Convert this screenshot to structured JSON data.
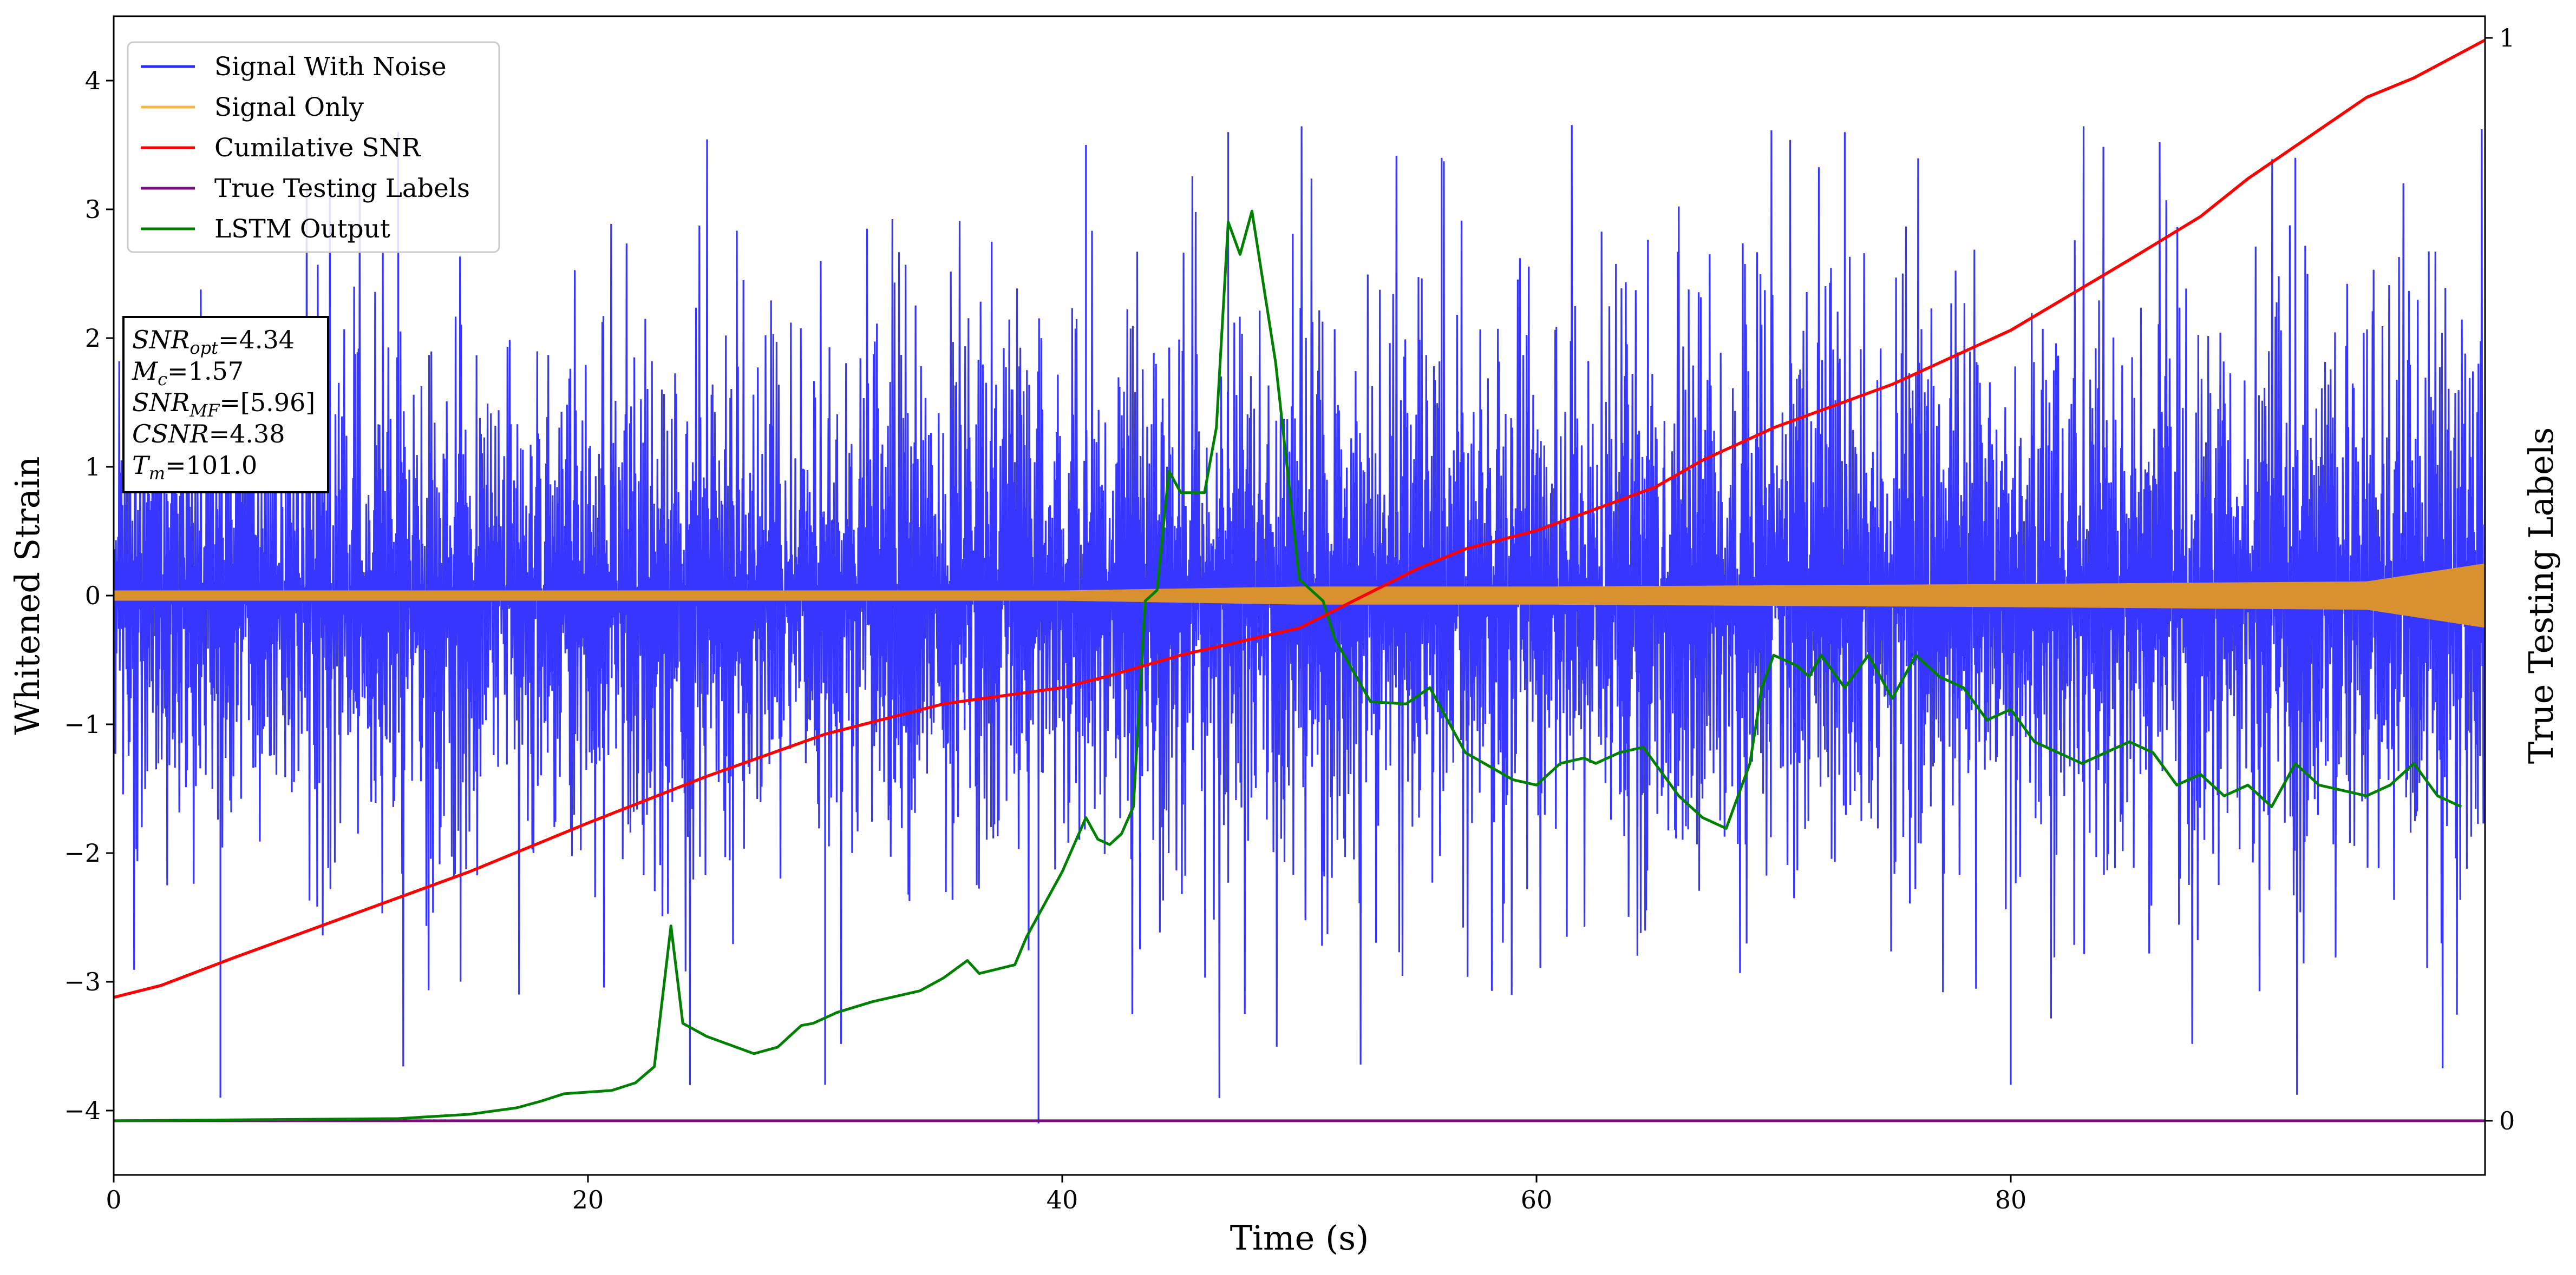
{
  "chart_data": {
    "type": "line",
    "xlabel": "Time (s)",
    "ylabel": "Whitened Strain",
    "ylabel_right": "True Testing Labels",
    "xlim": [
      0,
      100
    ],
    "ylim": [
      -4.5,
      4.5
    ],
    "ylim_right": [
      -0.05,
      1.02
    ],
    "x_ticks": [
      0,
      20,
      40,
      60,
      80
    ],
    "x_tick_labels": [
      "0",
      "20",
      "40",
      "60",
      "80"
    ],
    "y_ticks": [
      -4,
      -3,
      -2,
      -1,
      0,
      1,
      2,
      3,
      4
    ],
    "y_tick_labels": [
      "−4",
      "−3",
      "−2",
      "−1",
      "0",
      "1",
      "2",
      "3",
      "4"
    ],
    "y_ticks_right": [
      0,
      1
    ],
    "y_tick_labels_right": [
      "0",
      "1"
    ],
    "legend_position": "top-left",
    "series": [
      {
        "name": "Signal With Noise",
        "color": "#2b2bff",
        "axis": "left",
        "style": "noise",
        "envelope": [
          [
            0,
            2.4
          ],
          [
            10,
            2.5
          ],
          [
            20,
            2.6
          ],
          [
            40,
            2.7
          ],
          [
            60,
            2.7
          ],
          [
            80,
            2.8
          ],
          [
            100,
            2.8
          ]
        ],
        "spikes": [
          [
            4.5,
            -3.9
          ],
          [
            39,
            -4.1
          ],
          [
            41,
            3.5
          ],
          [
            47,
            3.6
          ],
          [
            30,
            -3.8
          ],
          [
            56,
            3.4
          ],
          [
            80,
            -3.8
          ],
          [
            92,
            3.4
          ],
          [
            12,
            3.6
          ],
          [
            73,
            3.6
          ]
        ]
      },
      {
        "name": "Signal Only",
        "color": "#f5a623",
        "axis": "left",
        "style": "band",
        "amplitude": [
          [
            0,
            0.04
          ],
          [
            40,
            0.04
          ],
          [
            50,
            0.07
          ],
          [
            60,
            0.07
          ],
          [
            80,
            0.09
          ],
          [
            95,
            0.11
          ],
          [
            100,
            0.25
          ]
        ]
      },
      {
        "name": "Cumilative SNR",
        "color": "#ff0000",
        "axis": "right",
        "x": [
          0,
          2,
          5,
          10,
          15,
          20,
          25,
          30,
          35,
          40,
          42,
          45,
          50,
          55,
          57,
          60,
          65,
          67,
          70,
          75,
          80,
          85,
          88,
          90,
          95,
          97,
          100
        ],
        "y": [
          0.114,
          0.125,
          0.15,
          0.19,
          0.23,
          0.275,
          0.318,
          0.357,
          0.385,
          0.4,
          0.411,
          0.43,
          0.455,
          0.51,
          0.528,
          0.545,
          0.585,
          0.61,
          0.64,
          0.68,
          0.73,
          0.795,
          0.835,
          0.87,
          0.945,
          0.963,
          0.998
        ]
      },
      {
        "name": "True Testing Labels",
        "color": "#7b0c7b",
        "axis": "right",
        "x": [
          0,
          100
        ],
        "y": [
          0,
          0
        ]
      },
      {
        "name": "LSTM Output",
        "color": "#008000",
        "axis": "right",
        "x": [
          0,
          12,
          15,
          17,
          18,
          19,
          21,
          22,
          22.8,
          23.5,
          24,
          25,
          26,
          27,
          28,
          29,
          29.5,
          30.5,
          32,
          34,
          35,
          36,
          36.5,
          38,
          38.5,
          40,
          41,
          41.5,
          42,
          42.5,
          43,
          43.5,
          44,
          44.5,
          45,
          46,
          46.5,
          47,
          47.5,
          48,
          48.5,
          49,
          49.5,
          50,
          51,
          51.5,
          53,
          54.5,
          55.5,
          57,
          59,
          60,
          61,
          62,
          62.5,
          63.5,
          64.5,
          66,
          67,
          68,
          69,
          69.5,
          70,
          71,
          71.5,
          72,
          73,
          74,
          75,
          76,
          77,
          78,
          79,
          80,
          81,
          82,
          83,
          84,
          85,
          86,
          87,
          88,
          89,
          90,
          91,
          92,
          93,
          95,
          96,
          97,
          98,
          99
        ],
        "y": [
          0.0,
          0.002,
          0.006,
          0.012,
          0.018,
          0.025,
          0.028,
          0.035,
          0.05,
          0.18,
          0.09,
          0.078,
          0.07,
          0.062,
          0.068,
          0.088,
          0.09,
          0.1,
          0.11,
          0.12,
          0.132,
          0.148,
          0.136,
          0.144,
          0.17,
          0.23,
          0.28,
          0.26,
          0.255,
          0.265,
          0.29,
          0.48,
          0.49,
          0.6,
          0.58,
          0.58,
          0.64,
          0.83,
          0.8,
          0.84,
          0.77,
          0.7,
          0.6,
          0.5,
          0.48,
          0.445,
          0.387,
          0.385,
          0.4,
          0.34,
          0.315,
          0.31,
          0.33,
          0.335,
          0.33,
          0.34,
          0.345,
          0.3,
          0.28,
          0.27,
          0.33,
          0.4,
          0.43,
          0.42,
          0.41,
          0.43,
          0.4,
          0.43,
          0.39,
          0.43,
          0.41,
          0.4,
          0.37,
          0.38,
          0.35,
          0.34,
          0.33,
          0.34,
          0.35,
          0.34,
          0.31,
          0.32,
          0.3,
          0.31,
          0.29,
          0.33,
          0.31,
          0.3,
          0.31,
          0.33,
          0.3,
          0.29
        ]
      }
    ],
    "annotation_lines": [
      {
        "label": "SNR",
        "sub": "opt",
        "value": "=4.34"
      },
      {
        "label": "M",
        "sub": "c",
        "value": "=1.57"
      },
      {
        "label": "SNR",
        "sub": "MF",
        "value": "=[5.96]"
      },
      {
        "label": "CSNR",
        "sub": "",
        "value": "=4.38"
      },
      {
        "label": "T",
        "sub": "m",
        "value": "=101.0"
      }
    ]
  }
}
